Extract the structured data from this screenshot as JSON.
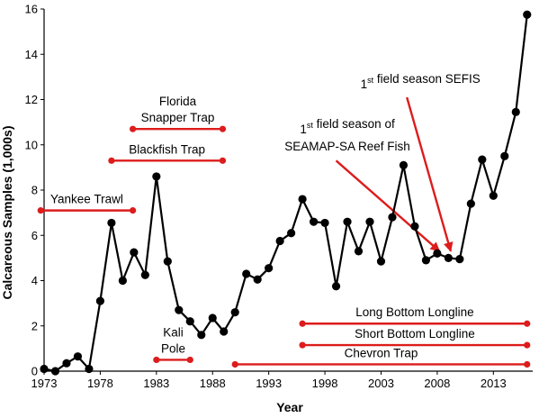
{
  "chart_data": {
    "type": "line",
    "xlabel": "Year",
    "ylabel": "Calcareous Samples (1,000s)",
    "xlim": [
      1973,
      2016.5
    ],
    "ylim": [
      0,
      16
    ],
    "xticks": [
      1973,
      1978,
      1983,
      1988,
      1993,
      1998,
      2003,
      2008,
      2013
    ],
    "yticks": [
      0,
      2,
      4,
      6,
      8,
      10,
      12,
      14,
      16
    ],
    "grid": false,
    "x": [
      1973,
      1974,
      1975,
      1976,
      1977,
      1978,
      1979,
      1980,
      1981,
      1982,
      1983,
      1984,
      1985,
      1986,
      1987,
      1988,
      1989,
      1990,
      1991,
      1992,
      1993,
      1994,
      1995,
      1996,
      1997,
      1998,
      1999,
      2000,
      2001,
      2002,
      2003,
      2004,
      2005,
      2006,
      2007,
      2008,
      2009,
      2010,
      2011,
      2012,
      2013,
      2014,
      2015,
      2016
    ],
    "series": [
      {
        "color": "#000000",
        "values": [
          0.1,
          0.0,
          0.35,
          0.65,
          0.1,
          3.1,
          6.55,
          4.0,
          5.25,
          4.25,
          8.6,
          4.85,
          2.7,
          2.2,
          1.6,
          2.35,
          1.75,
          2.6,
          4.3,
          4.05,
          4.55,
          5.75,
          6.1,
          7.6,
          6.6,
          6.55,
          3.75,
          6.6,
          5.3,
          6.6,
          4.85,
          6.8,
          9.1,
          6.4,
          4.9,
          5.2,
          5.0,
          4.95,
          7.4,
          9.35,
          7.75,
          9.5,
          11.45,
          15.75
        ]
      }
    ],
    "annotations": {
      "gear_color": "#dd1c1c",
      "gears": [
        {
          "lines": [
            "Yankee Trawl"
          ],
          "start": 1972.7,
          "end": 1980.9,
          "y": 7.1
        },
        {
          "lines": [
            "Blackfish Trap"
          ],
          "start": 1979.0,
          "end": 1988.9,
          "y": 9.3
        },
        {
          "lines": [
            "Florida",
            "Snapper Trap"
          ],
          "start": 1980.9,
          "end": 1988.9,
          "y": 10.7
        },
        {
          "lines": [
            "Kali",
            "Pole"
          ],
          "start": 1983.0,
          "end": 1986.0,
          "y": 0.5
        },
        {
          "lines": [
            "Long Bottom Longline"
          ],
          "start": 1996.0,
          "end": 2016.0,
          "y": 2.1
        },
        {
          "lines": [
            "Short Bottom Longline"
          ],
          "start": 1996.0,
          "end": 2016.0,
          "y": 1.15
        },
        {
          "lines": [
            "Chevron Trap"
          ],
          "start": 1990.0,
          "end": 2016.0,
          "y": 0.3
        }
      ],
      "arrows": [
        {
          "sup": "st",
          "lines": [
            [
              "1",
              " field season of"
            ],
            [
              "SEAMAP-SA Reef Fish",
              ""
            ]
          ],
          "text_x": 2000.0,
          "text_y": 10.5,
          "from_x": 1999.0,
          "from_y": 9.3,
          "to_x": 2008.2,
          "to_y": 5.3
        },
        {
          "sup": "st",
          "lines": [
            [
              "1",
              " field season SEFIS"
            ]
          ],
          "text_x": 2006.5,
          "text_y": 12.5,
          "from_x": 2005.3,
          "from_y": 12.1,
          "to_x": 2009.2,
          "to_y": 5.3
        }
      ]
    }
  }
}
